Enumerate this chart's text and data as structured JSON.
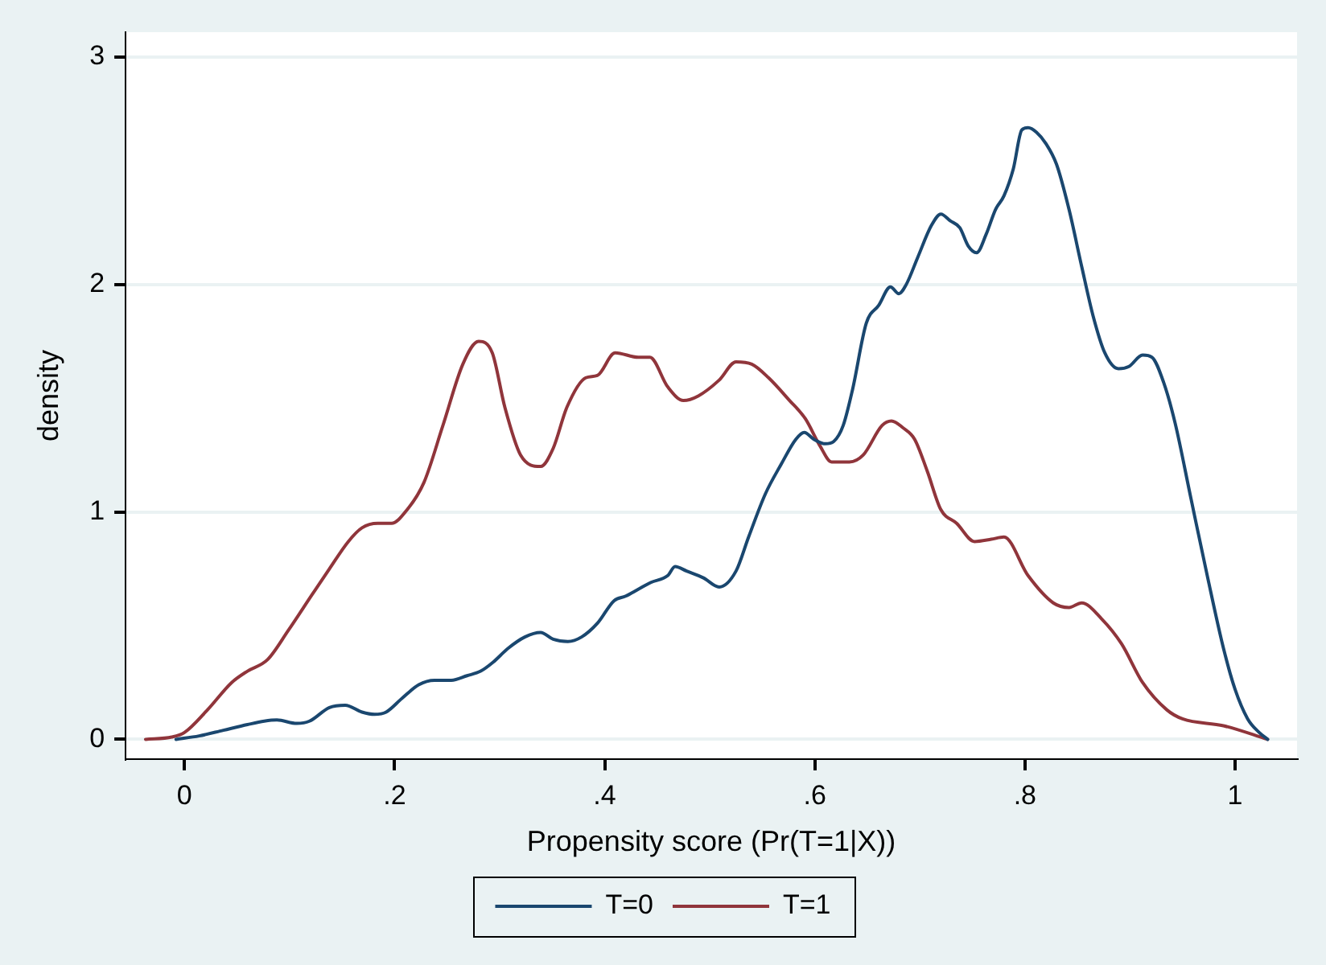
{
  "chart_data": {
    "type": "line",
    "xlabel": "Propensity score (Pr(T=1|X))",
    "ylabel": "density",
    "xlim": [
      -0.056,
      1.059
    ],
    "ylim": [
      -0.087,
      3.11
    ],
    "xticks": [
      {
        "value": 0,
        "label": "0"
      },
      {
        "value": 0.2,
        "label": ".2"
      },
      {
        "value": 0.4,
        "label": ".4"
      },
      {
        "value": 0.6,
        "label": ".6"
      },
      {
        "value": 0.8,
        "label": ".8"
      },
      1
    ],
    "yticks": [
      0,
      1,
      2,
      3
    ],
    "grid": "y",
    "legend": "bottom",
    "marker": "none",
    "line_style": "solid",
    "series": [
      {
        "name": "T=0",
        "color": "#1a476f",
        "x": [
          -0.008,
          0.014,
          0.037,
          0.06,
          0.076,
          0.088,
          0.107,
          0.119,
          0.138,
          0.153,
          0.169,
          0.181,
          0.192,
          0.207,
          0.223,
          0.238,
          0.254,
          0.269,
          0.282,
          0.294,
          0.308,
          0.324,
          0.339,
          0.351,
          0.365,
          0.378,
          0.393,
          0.409,
          0.42,
          0.432,
          0.444,
          0.46,
          0.467,
          0.478,
          0.494,
          0.509,
          0.525,
          0.537,
          0.553,
          0.568,
          0.582,
          0.59,
          0.599,
          0.61,
          0.618,
          0.627,
          0.636,
          0.649,
          0.661,
          0.672,
          0.68,
          0.687,
          0.698,
          0.711,
          0.72,
          0.729,
          0.738,
          0.746,
          0.754,
          0.763,
          0.772,
          0.78,
          0.789,
          0.797,
          0.803,
          0.811,
          0.82,
          0.83,
          0.842,
          0.854,
          0.865,
          0.876,
          0.889,
          0.899,
          0.912,
          0.921,
          0.932,
          0.943,
          0.958,
          0.974,
          0.989,
          1.0,
          1.012,
          1.023,
          1.031
        ],
        "values": [
          0,
          0.015,
          0.04,
          0.065,
          0.08,
          0.085,
          0.07,
          0.08,
          0.14,
          0.15,
          0.12,
          0.11,
          0.12,
          0.18,
          0.24,
          0.26,
          0.26,
          0.28,
          0.3,
          0.34,
          0.4,
          0.45,
          0.47,
          0.44,
          0.43,
          0.45,
          0.51,
          0.61,
          0.63,
          0.66,
          0.69,
          0.72,
          0.76,
          0.74,
          0.71,
          0.67,
          0.74,
          0.89,
          1.08,
          1.21,
          1.32,
          1.35,
          1.32,
          1.3,
          1.31,
          1.38,
          1.54,
          1.83,
          1.91,
          1.99,
          1.96,
          2.0,
          2.12,
          2.26,
          2.31,
          2.28,
          2.25,
          2.17,
          2.14,
          2.22,
          2.33,
          2.39,
          2.51,
          2.68,
          2.69,
          2.67,
          2.62,
          2.53,
          2.33,
          2.08,
          1.86,
          1.7,
          1.63,
          1.64,
          1.69,
          1.68,
          1.57,
          1.39,
          1.06,
          0.71,
          0.4,
          0.22,
          0.09,
          0.03,
          0
        ]
      },
      {
        "name": "T=1",
        "color": "#90353b",
        "x": [
          -0.037,
          -0.012,
          0,
          0.022,
          0.045,
          0.06,
          0.079,
          0.099,
          0.122,
          0.138,
          0.156,
          0.169,
          0.184,
          0.197,
          0.212,
          0.228,
          0.246,
          0.265,
          0.28,
          0.293,
          0.305,
          0.32,
          0.339,
          0.351,
          0.364,
          0.382,
          0.393,
          0.41,
          0.432,
          0.443,
          0.46,
          0.475,
          0.489,
          0.509,
          0.525,
          0.54,
          0.556,
          0.576,
          0.591,
          0.605,
          0.616,
          0.633,
          0.646,
          0.664,
          0.673,
          0.684,
          0.695,
          0.707,
          0.72,
          0.735,
          0.752,
          0.768,
          0.78,
          0.803,
          0.827,
          0.842,
          0.854,
          0.873,
          0.892,
          0.912,
          0.935,
          0.95,
          0.989,
          1.031
        ],
        "values": [
          0,
          0.01,
          0.03,
          0.13,
          0.25,
          0.3,
          0.35,
          0.48,
          0.64,
          0.75,
          0.87,
          0.93,
          0.95,
          0.95,
          1.01,
          1.13,
          1.38,
          1.65,
          1.75,
          1.7,
          1.46,
          1.25,
          1.2,
          1.28,
          1.46,
          1.59,
          1.6,
          1.7,
          1.68,
          1.68,
          1.55,
          1.49,
          1.51,
          1.58,
          1.66,
          1.65,
          1.59,
          1.49,
          1.41,
          1.29,
          1.22,
          1.22,
          1.25,
          1.38,
          1.4,
          1.37,
          1.32,
          1.18,
          1.01,
          0.95,
          0.87,
          0.88,
          0.89,
          0.72,
          0.6,
          0.58,
          0.6,
          0.53,
          0.42,
          0.25,
          0.13,
          0.09,
          0.06,
          0
        ]
      }
    ]
  }
}
